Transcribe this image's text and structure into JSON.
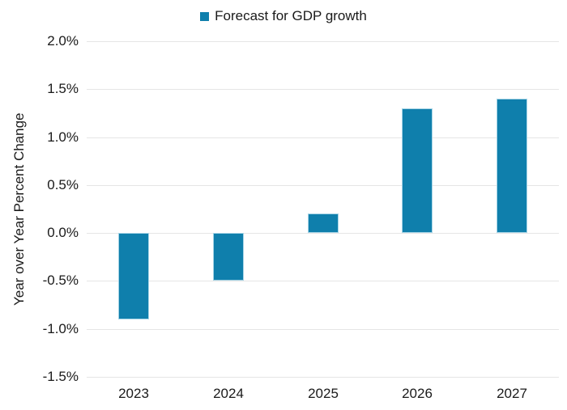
{
  "chart_data": {
    "type": "bar",
    "title": "",
    "legend": {
      "label": "Forecast for GDP growth",
      "position": "top-center"
    },
    "categories": [
      "2023",
      "2024",
      "2025",
      "2026",
      "2027"
    ],
    "values": [
      -0.9,
      -0.5,
      0.2,
      1.3,
      1.4
    ],
    "xlabel": "",
    "ylabel": "Year over Year Percent Change",
    "ylim": [
      -1.5,
      2.0
    ],
    "yticks": [
      2.0,
      1.5,
      1.0,
      0.5,
      0.0,
      -0.5,
      -1.0,
      -1.5
    ],
    "ytick_labels": [
      "2.0%",
      "1.5%",
      "1.0%",
      "0.5%",
      "0.0%",
      "-0.5%",
      "-1.0%",
      "-1.5%"
    ],
    "grid": true,
    "colors": {
      "bar_fill": "#0f7fac",
      "bar_edge": "#a6d4e6",
      "gridline": "#e5e5e5",
      "text": "#1a1a1a",
      "background": "#ffffff"
    }
  }
}
